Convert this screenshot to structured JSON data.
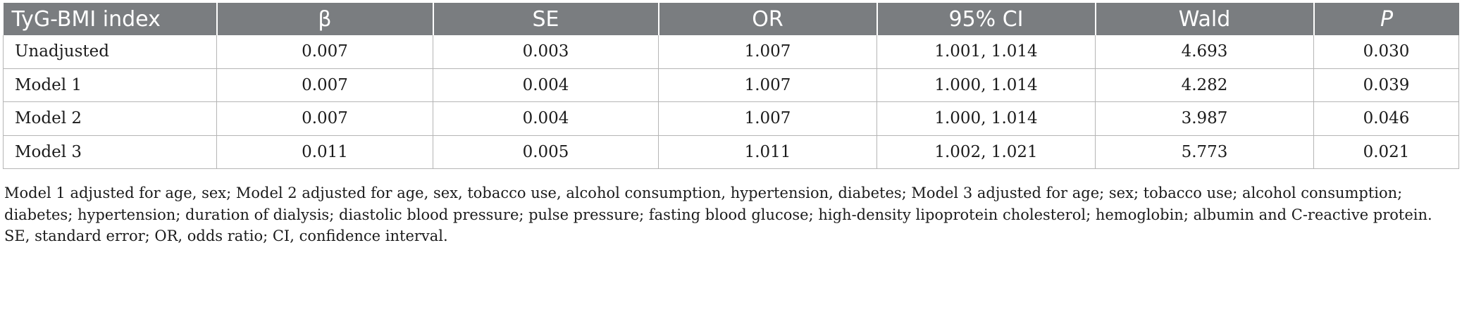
{
  "table": {
    "columns": [
      "TyG-BMI index",
      "β",
      "SE",
      "OR",
      "95% CI",
      "Wald",
      "P"
    ],
    "rows": [
      [
        "Unadjusted",
        "0.007",
        "0.003",
        "1.007",
        "1.001, 1.014",
        "4.693",
        "0.030"
      ],
      [
        "Model 1",
        "0.007",
        "0.004",
        "1.007",
        "1.000, 1.014",
        "4.282",
        "0.039"
      ],
      [
        "Model 2",
        "0.007",
        "0.004",
        "1.007",
        "1.000, 1.014",
        "3.987",
        "0.046"
      ],
      [
        "Model 3",
        "0.011",
        "0.005",
        "1.011",
        "1.002, 1.021",
        "5.773",
        "0.021"
      ]
    ]
  },
  "footnote": {
    "line1": "Model 1 adjusted for age, sex; Model 2 adjusted for age, sex, tobacco use, alcohol consumption, hypertension, diabetes; Model 3 adjusted for age; sex; tobacco use; alcohol consumption;",
    "line2": "diabetes; hypertension; duration of dialysis; diastolic blood pressure; pulse pressure; fasting blood glucose; high-density lipoprotein cholesterol; hemoglobin; albumin and C-reactive protein.",
    "line3": "SE, standard error; OR, odds ratio; CI, confidence interval."
  }
}
